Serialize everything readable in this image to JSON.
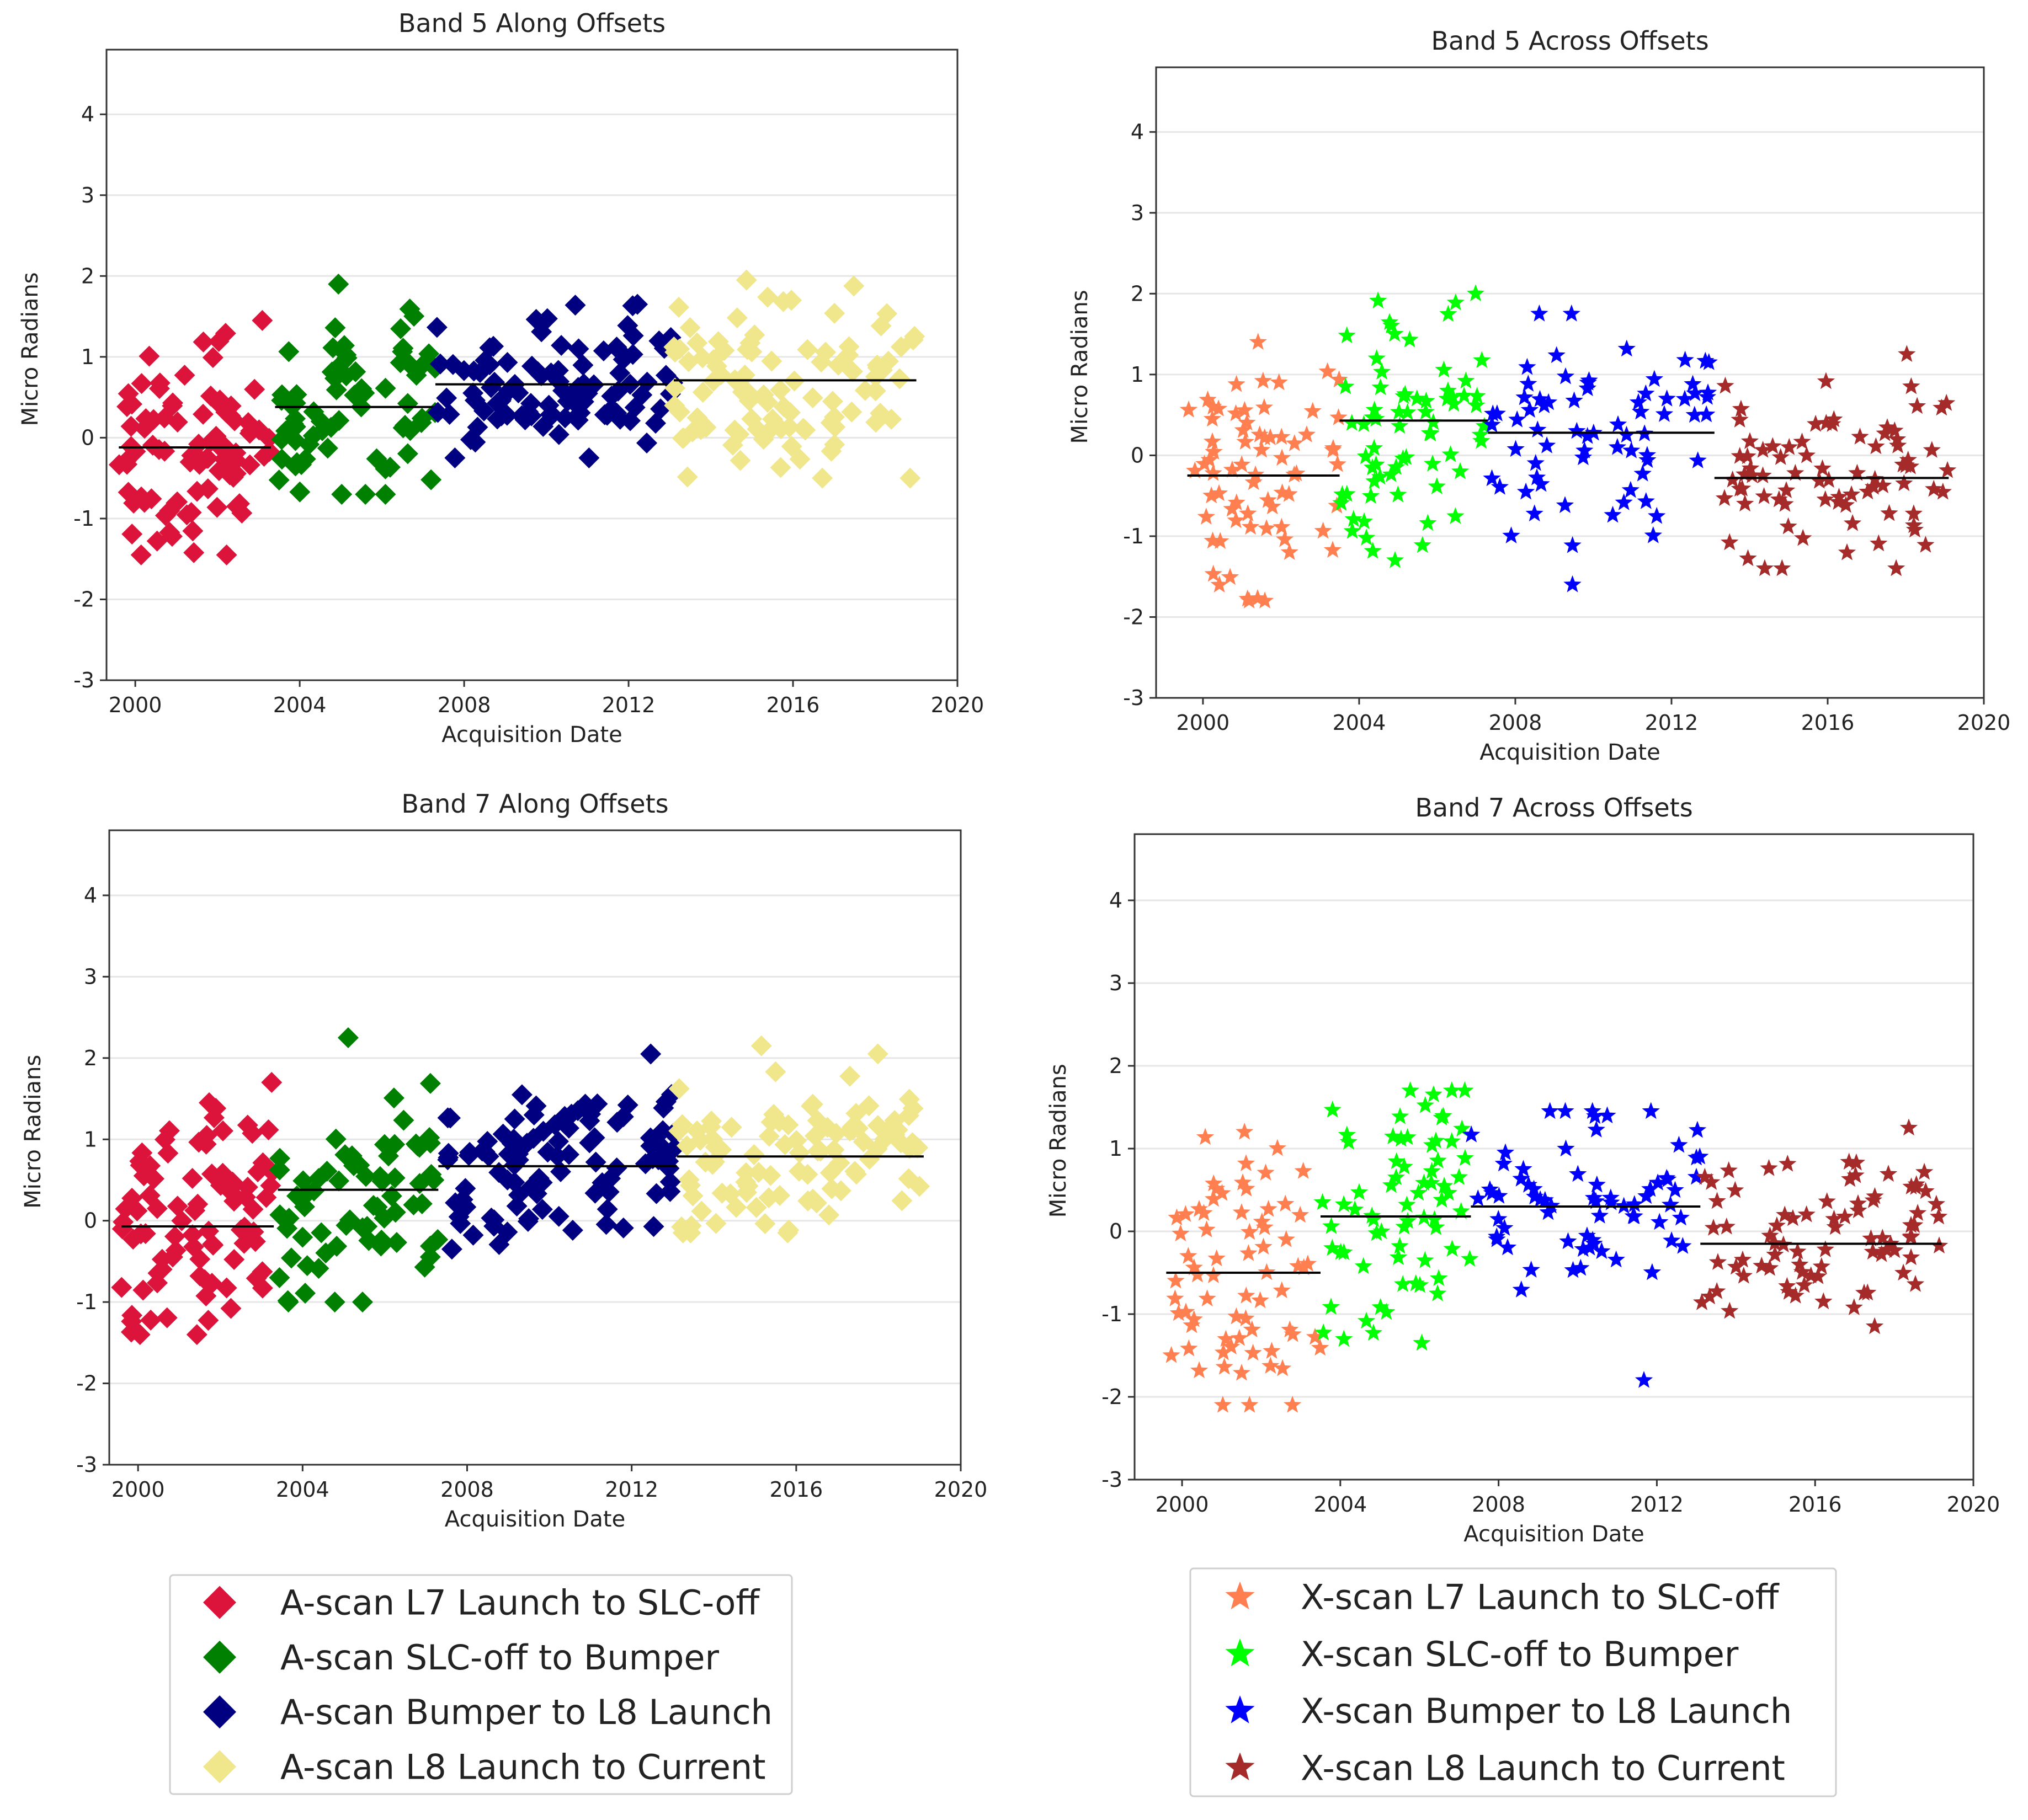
{
  "chart_data": [
    {
      "type": "scatter",
      "id": "band5-along",
      "title": "Band 5 Along Offsets",
      "xlabel": "Acquisition Date",
      "ylabel": "Micro Radians",
      "xlim": [
        1999.3,
        2020
      ],
      "ylim": [
        -3,
        4.8
      ],
      "xticks": [
        "2000",
        "2004",
        "2008",
        "2012",
        "2016",
        "2020"
      ],
      "yticks": [
        "-3",
        "-2",
        "-1",
        "0",
        "1",
        "2",
        "3",
        "4"
      ],
      "marker": "diamond",
      "grid": true,
      "series": [
        {
          "name": "A-scan L7 Launch to SLC-off",
          "color": "#dc143c",
          "x_range": [
            1999.6,
            2003.3
          ],
          "y_range": [
            -1.45,
            1.45
          ],
          "mean": -0.12,
          "count": 90,
          "seed": 11
        },
        {
          "name": "A-scan SLC-off to Bumper",
          "color": "#008000",
          "x_range": [
            2003.4,
            2007.3
          ],
          "y_range": [
            -0.7,
            1.9
          ],
          "mean": 0.38,
          "count": 70,
          "seed": 12
        },
        {
          "name": "A-scan Bumper to L8 Launch",
          "color": "#000080",
          "x_range": [
            2007.3,
            2013.1
          ],
          "y_range": [
            -0.25,
            1.65
          ],
          "mean": 0.66,
          "count": 100,
          "seed": 13
        },
        {
          "name": "A-scan L8 Launch to Current",
          "color": "#f0e68c",
          "x_range": [
            2013.1,
            2019.0
          ],
          "y_range": [
            -0.5,
            1.95
          ],
          "mean": 0.71,
          "count": 100,
          "seed": 14
        }
      ]
    },
    {
      "type": "scatter",
      "id": "band5-across",
      "title": "Band 5 Across Offsets",
      "xlabel": "Acquisition Date",
      "ylabel": "Micro Radians",
      "xlim": [
        1998.8,
        2020
      ],
      "ylim": [
        -3,
        4.8
      ],
      "xticks": [
        "2000",
        "2004",
        "2008",
        "2012",
        "2016",
        "2020"
      ],
      "yticks": [
        "-3",
        "-2",
        "-1",
        "0",
        "1",
        "2",
        "3",
        "4"
      ],
      "marker": "star",
      "grid": true,
      "series": [
        {
          "name": "X-scan L7 Launch to SLC-off",
          "color": "#ff7f50",
          "x_range": [
            1999.6,
            2003.5
          ],
          "y_range": [
            -1.8,
            1.4
          ],
          "mean": -0.25,
          "count": 70,
          "seed": 21
        },
        {
          "name": "X-scan SLC-off to Bumper",
          "color": "#00ff00",
          "x_range": [
            2003.5,
            2007.3
          ],
          "y_range": [
            -1.3,
            2.0
          ],
          "mean": 0.43,
          "count": 70,
          "seed": 22
        },
        {
          "name": "X-scan Bumper to L8 Launch",
          "color": "#0000ff",
          "x_range": [
            2007.3,
            2013.1
          ],
          "y_range": [
            -1.6,
            1.75
          ],
          "mean": 0.28,
          "count": 70,
          "seed": 23
        },
        {
          "name": "X-scan L8 Launch to Current",
          "color": "#a52a2a",
          "x_range": [
            2013.1,
            2019.1
          ],
          "y_range": [
            -1.4,
            1.25
          ],
          "mean": -0.28,
          "count": 80,
          "seed": 24
        }
      ]
    },
    {
      "type": "scatter",
      "id": "band7-along",
      "title": "Band 7 Along Offsets",
      "xlabel": "Acquisition Date",
      "ylabel": "Micro Radians",
      "xlim": [
        1999.3,
        2020
      ],
      "ylim": [
        -3,
        4.8
      ],
      "xticks": [
        "2000",
        "2004",
        "2008",
        "2012",
        "2016",
        "2020"
      ],
      "yticks": [
        "-3",
        "-2",
        "-1",
        "0",
        "1",
        "2",
        "3",
        "4"
      ],
      "marker": "diamond",
      "grid": true,
      "series": [
        {
          "name": "A-scan L7 Launch to SLC-off",
          "color": "#dc143c",
          "x_range": [
            1999.6,
            2003.3
          ],
          "y_range": [
            -1.4,
            1.7
          ],
          "mean": -0.07,
          "count": 90,
          "seed": 31
        },
        {
          "name": "A-scan SLC-off to Bumper",
          "color": "#008000",
          "x_range": [
            2003.4,
            2007.3
          ],
          "y_range": [
            -1.0,
            2.25
          ],
          "mean": 0.38,
          "count": 70,
          "seed": 32
        },
        {
          "name": "A-scan Bumper to L8 Launch",
          "color": "#000080",
          "x_range": [
            2007.3,
            2013.1
          ],
          "y_range": [
            -0.35,
            2.05
          ],
          "mean": 0.67,
          "count": 100,
          "seed": 33
        },
        {
          "name": "A-scan L8 Launch to Current",
          "color": "#f0e68c",
          "x_range": [
            2013.1,
            2019.1
          ],
          "y_range": [
            -0.15,
            2.15
          ],
          "mean": 0.79,
          "count": 100,
          "seed": 34
        }
      ]
    },
    {
      "type": "scatter",
      "id": "band7-across",
      "title": "Band 7 Across Offsets",
      "xlabel": "Acquisition Date",
      "ylabel": "Micro Radians",
      "xlim": [
        1998.8,
        2020
      ],
      "ylim": [
        -3,
        4.8
      ],
      "xticks": [
        "2000",
        "2004",
        "2008",
        "2012",
        "2016",
        "2020"
      ],
      "yticks": [
        "-3",
        "-2",
        "-1",
        "0",
        "1",
        "2",
        "3",
        "4"
      ],
      "marker": "star",
      "grid": true,
      "series": [
        {
          "name": "X-scan L7 Launch to SLC-off",
          "color": "#ff7f50",
          "x_range": [
            1999.6,
            2003.5
          ],
          "y_range": [
            -2.1,
            1.2
          ],
          "mean": -0.5,
          "count": 70,
          "seed": 41
        },
        {
          "name": "X-scan SLC-off to Bumper",
          "color": "#00ff00",
          "x_range": [
            2003.5,
            2007.3
          ],
          "y_range": [
            -1.35,
            1.7
          ],
          "mean": 0.18,
          "count": 70,
          "seed": 42
        },
        {
          "name": "X-scan Bumper to L8 Launch",
          "color": "#0000ff",
          "x_range": [
            2007.3,
            2013.1
          ],
          "y_range": [
            -1.8,
            1.45
          ],
          "mean": 0.3,
          "count": 70,
          "seed": 43
        },
        {
          "name": "X-scan L8 Launch to Current",
          "color": "#a52a2a",
          "x_range": [
            2013.1,
            2019.2
          ],
          "y_range": [
            -1.15,
            1.25
          ],
          "mean": -0.15,
          "count": 80,
          "seed": 44
        }
      ]
    }
  ],
  "legends": [
    {
      "id": "along-legend",
      "marker": "diamond",
      "items": [
        {
          "label": "A-scan L7 Launch to SLC-off",
          "color": "#dc143c"
        },
        {
          "label": "A-scan SLC-off to Bumper",
          "color": "#008000"
        },
        {
          "label": "A-scan Bumper to L8 Launch",
          "color": "#000080"
        },
        {
          "label": "A-scan L8 Launch to Current",
          "color": "#f0e68c"
        }
      ]
    },
    {
      "id": "across-legend",
      "marker": "star",
      "items": [
        {
          "label": "X-scan L7 Launch to SLC-off",
          "color": "#ff7f50"
        },
        {
          "label": "X-scan SLC-off to Bumper",
          "color": "#00ff00"
        },
        {
          "label": "X-scan Bumper to L8 Launch",
          "color": "#0000ff"
        },
        {
          "label": "X-scan L8 Launch to Current",
          "color": "#a52a2a"
        }
      ]
    }
  ]
}
